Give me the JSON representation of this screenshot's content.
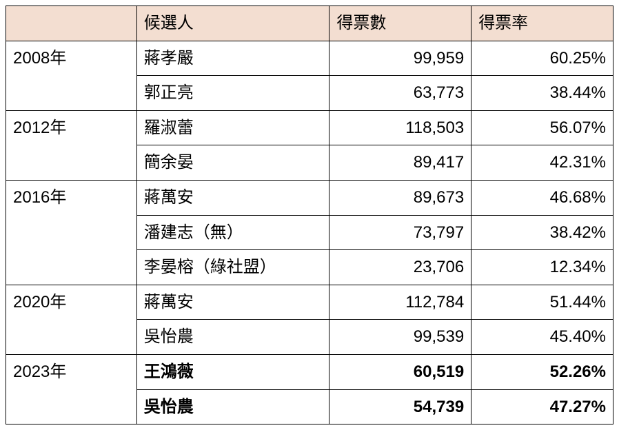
{
  "headers": {
    "empty": "",
    "candidate": "候選人",
    "votes": "得票數",
    "rate": "得票率"
  },
  "years": [
    {
      "label": "2008年",
      "bold": false,
      "rows": [
        {
          "candidate": "蔣孝嚴",
          "votes": "99,959",
          "rate": "60.25%"
        },
        {
          "candidate": "郭正亮",
          "votes": "63,773",
          "rate": "38.44%"
        }
      ]
    },
    {
      "label": "2012年",
      "bold": false,
      "rows": [
        {
          "candidate": "羅淑蕾",
          "votes": "118,503",
          "rate": "56.07%"
        },
        {
          "candidate": "簡余晏",
          "votes": "89,417",
          "rate": "42.31%"
        }
      ]
    },
    {
      "label": "2016年",
      "bold": false,
      "rows": [
        {
          "candidate": "蔣萬安",
          "votes": "89,673",
          "rate": "46.68%"
        },
        {
          "candidate": "潘建志（無）",
          "votes": "73,797",
          "rate": "38.42%"
        },
        {
          "candidate": "李晏榕（綠社盟）",
          "votes": "23,706",
          "rate": "12.34%"
        }
      ]
    },
    {
      "label": "2020年",
      "bold": false,
      "rows": [
        {
          "candidate": "蔣萬安",
          "votes": "112,784",
          "rate": "51.44%"
        },
        {
          "candidate": "吳怡農",
          "votes": "99,539",
          "rate": "45.40%"
        }
      ]
    },
    {
      "label": "2023年",
      "bold": true,
      "rows": [
        {
          "candidate": "王鴻薇",
          "votes": "60,519",
          "rate": "52.26%"
        },
        {
          "candidate": "吳怡農",
          "votes": "54,739",
          "rate": "47.27%"
        }
      ]
    }
  ]
}
